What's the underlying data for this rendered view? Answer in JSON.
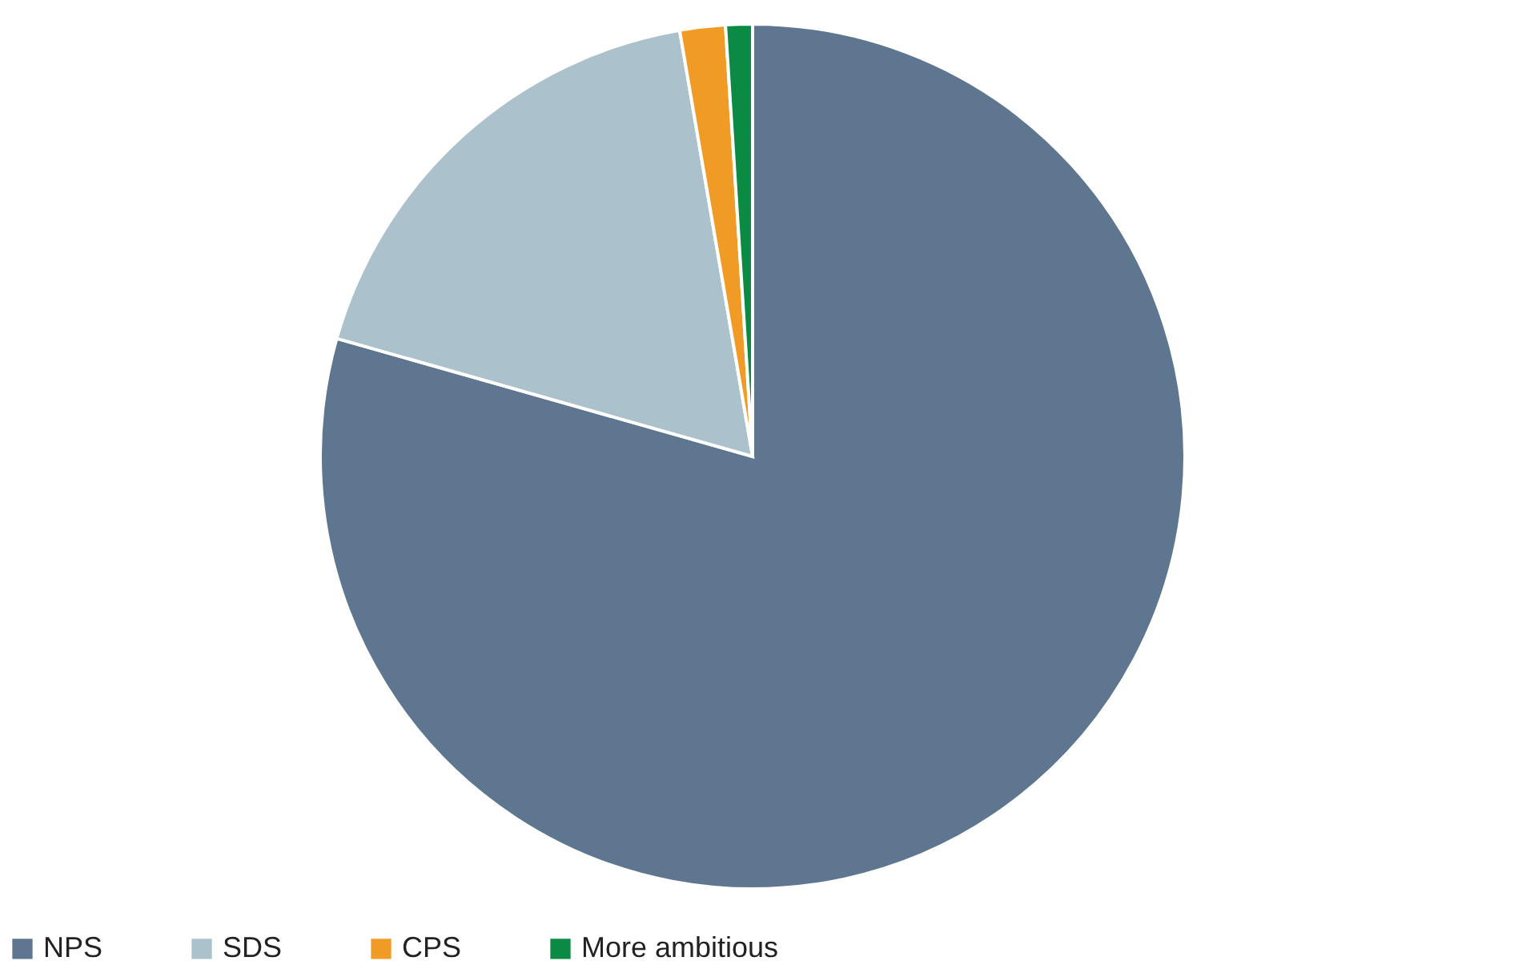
{
  "chart_data": {
    "type": "pie",
    "categories": [
      "NPS",
      "SDS",
      "CPS",
      "More ambitious"
    ],
    "values": [
      79.4,
      17.9,
      1.7,
      1.0
    ],
    "colors": [
      "#5f7690",
      "#abc1cb",
      "#f09b26",
      "#0a8a43"
    ],
    "legend": "bottom"
  }
}
